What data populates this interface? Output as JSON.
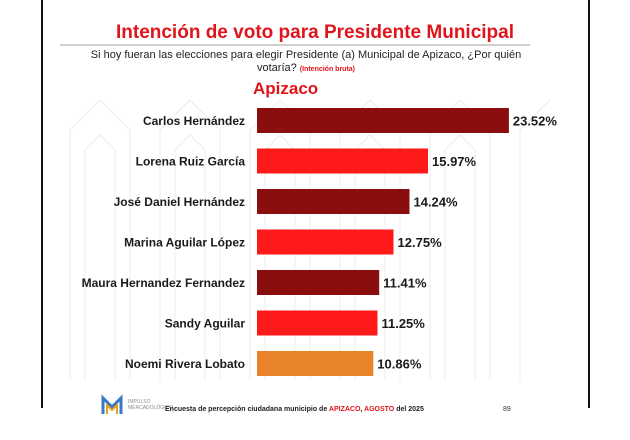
{
  "title": "Intención de voto para Presidente Municipal",
  "subtitle": "Si hoy fueran las elecciones para elegir Presidente (a)  Municipal de Apizaco, ¿Por quién votaría?",
  "subtitle_note": "(Intención bruta)",
  "region": "Apizaco",
  "colors": {
    "dark_red": "#8b0e0e",
    "bright_red": "#ff1a1a",
    "orange": "#e8832a",
    "accent_red": "#e0151b"
  },
  "chart_data": {
    "type": "bar",
    "orientation": "horizontal",
    "title": "Apizaco",
    "categories": [
      "Carlos Hernández",
      "Lorena Ruiz García",
      "José Daniel Hernández",
      "Marina Aguilar López",
      "Maura Hernandez Fernandez",
      "Sandy Aguilar",
      "Noemi Rivera Lobato"
    ],
    "values": [
      23.52,
      15.97,
      14.24,
      12.75,
      11.41,
      11.25,
      10.86
    ],
    "value_labels": [
      "23.52%",
      "15.97%",
      "14.24%",
      "12.75%",
      "11.41%",
      "11.25%",
      "10.86%"
    ],
    "bar_colors": [
      "#8b0e0e",
      "#ff1a1a",
      "#8b0e0e",
      "#ff1a1a",
      "#8b0e0e",
      "#ff1a1a",
      "#e8832a"
    ],
    "unit": "%",
    "grid": false,
    "legend": "none"
  },
  "footer": {
    "brand_line1": "IMPULSO",
    "brand_line2": "MERCADOLÓGICO",
    "text_before": "Encuesta de percepción ciudadana municipio de ",
    "place": "APIZACO",
    "sep": ",  ",
    "month": "AGOSTO",
    "text_after": " del 2025",
    "page": "89"
  }
}
